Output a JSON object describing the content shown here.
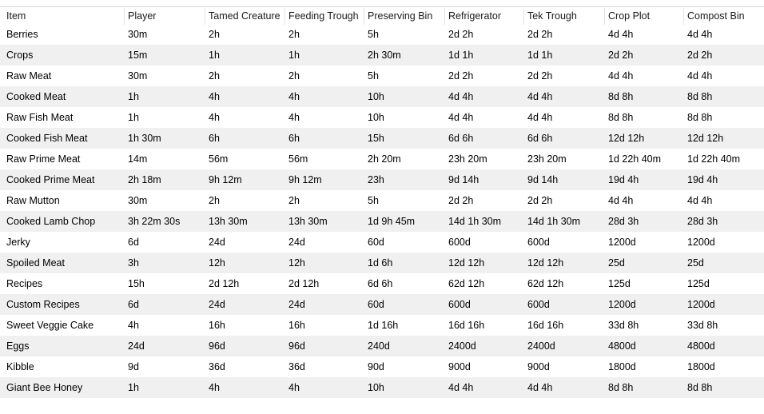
{
  "table": {
    "columns": [
      "Item",
      "Player",
      "Tamed Creature",
      "Feeding Trough",
      "Preserving Bin",
      "Refrigerator",
      "Tek Trough",
      "Crop Plot",
      "Compost Bin"
    ],
    "rows": [
      [
        "Berries",
        "30m",
        "2h",
        "2h",
        "5h",
        "2d 2h",
        "2d 2h",
        "4d 4h",
        "4d 4h"
      ],
      [
        "Crops",
        "15m",
        "1h",
        "1h",
        "2h 30m",
        "1d 1h",
        "1d 1h",
        "2d 2h",
        "2d 2h"
      ],
      [
        "Raw Meat",
        "30m",
        "2h",
        "2h",
        "5h",
        "2d 2h",
        "2d 2h",
        "4d 4h",
        "4d 4h"
      ],
      [
        "Cooked Meat",
        "1h",
        "4h",
        "4h",
        "10h",
        "4d 4h",
        "4d 4h",
        "8d 8h",
        "8d 8h"
      ],
      [
        "Raw Fish Meat",
        "1h",
        "4h",
        "4h",
        "10h",
        "4d 4h",
        "4d 4h",
        "8d 8h",
        "8d 8h"
      ],
      [
        "Cooked Fish Meat",
        "1h 30m",
        "6h",
        "6h",
        "15h",
        "6d 6h",
        "6d 6h",
        "12d 12h",
        "12d 12h"
      ],
      [
        "Raw Prime Meat",
        "14m",
        "56m",
        "56m",
        "2h 20m",
        "23h 20m",
        "23h 20m",
        "1d 22h 40m",
        "1d 22h 40m"
      ],
      [
        "Cooked Prime Meat",
        "2h 18m",
        "9h 12m",
        "9h 12m",
        "23h",
        "9d 14h",
        "9d 14h",
        "19d 4h",
        "19d 4h"
      ],
      [
        "Raw Mutton",
        "30m",
        "2h",
        "2h",
        "5h",
        "2d 2h",
        "2d 2h",
        "4d 4h",
        "4d 4h"
      ],
      [
        "Cooked Lamb Chop",
        "3h 22m 30s",
        "13h 30m",
        "13h 30m",
        "1d 9h 45m",
        "14d 1h 30m",
        "14d 1h 30m",
        "28d 3h",
        "28d 3h"
      ],
      [
        "Jerky",
        "6d",
        "24d",
        "24d",
        "60d",
        "600d",
        "600d",
        "1200d",
        "1200d"
      ],
      [
        "Spoiled Meat",
        "3h",
        "12h",
        "12h",
        "1d 6h",
        "12d 12h",
        "12d 12h",
        "25d",
        "25d"
      ],
      [
        "Recipes",
        "15h",
        "2d 12h",
        "2d 12h",
        "6d 6h",
        "62d 12h",
        "62d 12h",
        "125d",
        "125d"
      ],
      [
        "Custom Recipes",
        "6d",
        "24d",
        "24d",
        "60d",
        "600d",
        "600d",
        "1200d",
        "1200d"
      ],
      [
        "Sweet Veggie Cake",
        "4h",
        "16h",
        "16h",
        "1d 16h",
        "16d 16h",
        "16d 16h",
        "33d 8h",
        "33d 8h"
      ],
      [
        "Eggs",
        "24d",
        "96d",
        "96d",
        "240d",
        "2400d",
        "2400d",
        "4800d",
        "4800d"
      ],
      [
        "Kibble",
        "9d",
        "36d",
        "36d",
        "90d",
        "900d",
        "900d",
        "1800d",
        "1800d"
      ],
      [
        "Giant Bee Honey",
        "1h",
        "4h",
        "4h",
        "10h",
        "4d 4h",
        "4d 4h",
        "8d 8h",
        "8d 8h"
      ]
    ]
  }
}
